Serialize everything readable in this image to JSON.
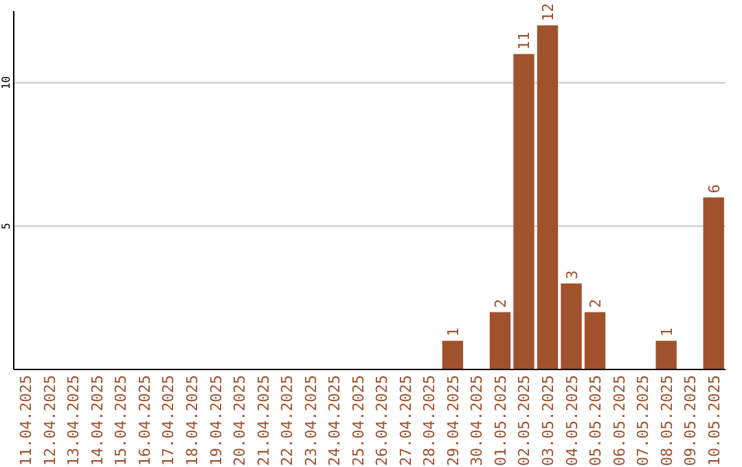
{
  "chart_data": {
    "type": "bar",
    "categories": [
      "11.04.2025",
      "12.04.2025",
      "13.04.2025",
      "14.04.2025",
      "15.04.2025",
      "16.04.2025",
      "17.04.2025",
      "18.04.2025",
      "19.04.2025",
      "20.04.2025",
      "21.04.2025",
      "22.04.2025",
      "23.04.2025",
      "24.04.2025",
      "25.04.2025",
      "26.04.2025",
      "27.04.2025",
      "28.04.2025",
      "29.04.2025",
      "30.04.2025",
      "01.05.2025",
      "02.05.2025",
      "03.05.2025",
      "04.05.2025",
      "05.05.2025",
      "06.05.2025",
      "07.05.2025",
      "08.05.2025",
      "09.05.2025",
      "10.05.2025"
    ],
    "values": [
      0,
      0,
      0,
      0,
      0,
      0,
      0,
      0,
      0,
      0,
      0,
      0,
      0,
      0,
      0,
      0,
      0,
      0,
      1,
      0,
      2,
      11,
      12,
      3,
      2,
      0,
      0,
      1,
      0,
      6
    ],
    "value_labels": [
      null,
      null,
      null,
      null,
      null,
      null,
      null,
      null,
      null,
      null,
      null,
      null,
      null,
      null,
      null,
      null,
      null,
      null,
      "1",
      null,
      "2",
      "11",
      "12",
      "3",
      "2",
      null,
      null,
      "1",
      null,
      "6"
    ],
    "color": "#a0522d",
    "ylim": [
      0,
      12.5
    ],
    "yticks": [
      5,
      10
    ],
    "grid": "y"
  }
}
